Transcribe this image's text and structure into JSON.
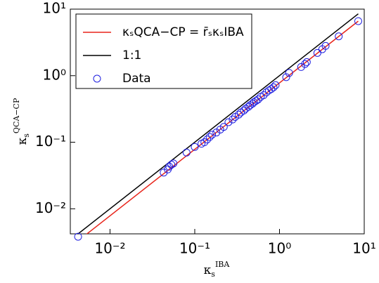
{
  "chart_data": {
    "type": "scatter",
    "xlabel": {
      "base": "κ",
      "sub": "s",
      "sup": "IBA"
    },
    "ylabel": {
      "base": "κ",
      "sub": "s",
      "sup": "QCA−CP"
    },
    "xscale": "log",
    "yscale": "log",
    "xlim": [
      0.0034,
      10
    ],
    "ylim": [
      0.0042,
      10
    ],
    "xticks": [
      {
        "value": 0.01,
        "label": "10⁻²"
      },
      {
        "value": 0.1,
        "label": "10⁻¹"
      },
      {
        "value": 1,
        "label": "10⁰"
      },
      {
        "value": 10,
        "label": "10¹"
      }
    ],
    "yticks": [
      {
        "value": 0.01,
        "label": "10⁻²"
      },
      {
        "value": 0.1,
        "label": "10⁻¹"
      },
      {
        "value": 1,
        "label": "10⁰"
      },
      {
        "value": 10,
        "label": "10¹"
      }
    ],
    "legend": "upper left",
    "series": [
      {
        "name": "κₛQCA−CP = r̄ₛκₛIBA",
        "kind": "line",
        "color": "#e8241a",
        "x": [
          0.0042,
          8.5
        ],
        "values": [
          0.0033,
          6.6
        ]
      },
      {
        "name": "1:1",
        "kind": "line",
        "color": "#000000",
        "x": [
          0.0042,
          8.5
        ],
        "values": [
          0.0042,
          8.5
        ]
      },
      {
        "name": "Data",
        "kind": "points",
        "color": "#1f1fe0",
        "x": [
          0.0042,
          0.043,
          0.048,
          0.05,
          0.053,
          0.056,
          0.08,
          0.1,
          0.12,
          0.13,
          0.14,
          0.15,
          0.16,
          0.18,
          0.2,
          0.22,
          0.25,
          0.28,
          0.3,
          0.33,
          0.35,
          0.38,
          0.4,
          0.43,
          0.45,
          0.48,
          0.5,
          0.53,
          0.56,
          0.6,
          0.65,
          0.7,
          0.75,
          0.8,
          0.85,
          0.9,
          1.2,
          1.3,
          1.8,
          2.0,
          2.1,
          2.8,
          3.2,
          3.5,
          5.0,
          8.5
        ],
        "values": [
          0.0038,
          0.035,
          0.039,
          0.043,
          0.046,
          0.048,
          0.07,
          0.085,
          0.095,
          0.1,
          0.11,
          0.12,
          0.13,
          0.14,
          0.155,
          0.17,
          0.2,
          0.22,
          0.24,
          0.26,
          0.28,
          0.3,
          0.32,
          0.34,
          0.36,
          0.38,
          0.4,
          0.42,
          0.44,
          0.48,
          0.51,
          0.56,
          0.6,
          0.63,
          0.67,
          0.72,
          0.95,
          1.1,
          1.35,
          1.5,
          1.6,
          2.2,
          2.5,
          2.8,
          3.9,
          6.6
        ]
      }
    ]
  }
}
